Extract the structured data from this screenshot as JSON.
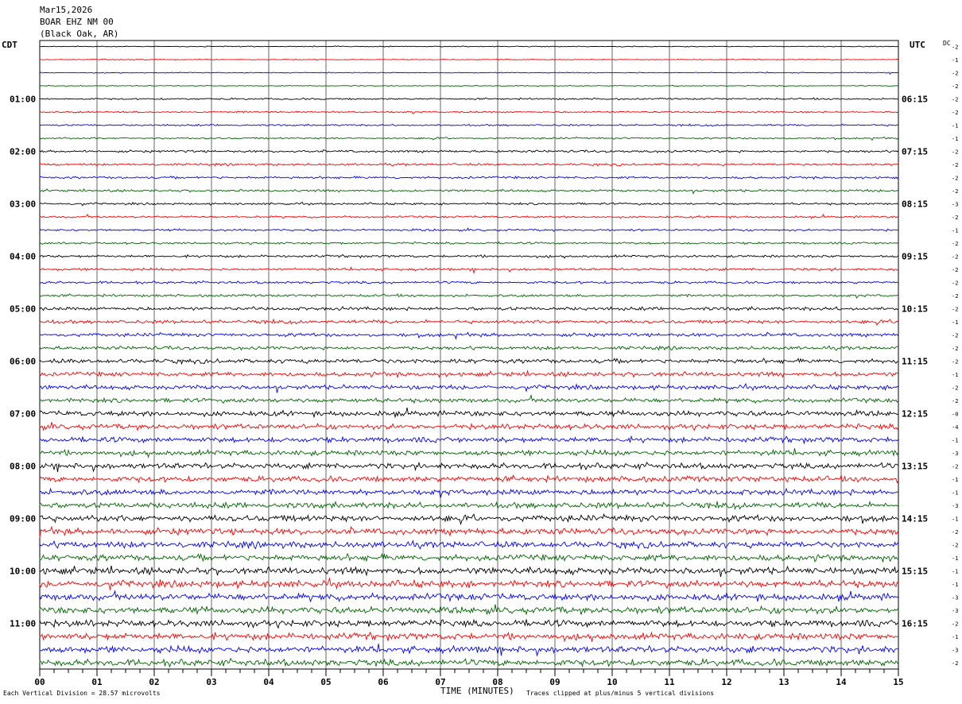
{
  "header": {
    "date": "Mar15,2026",
    "station": "BOAR EHZ NM 00",
    "location": "(Black Oak, AR)"
  },
  "left_axis_label": "CDT",
  "right_axis_label": "UTC",
  "dc_label": "DC",
  "footer": {
    "scale_note": "Each Vertical Division =   28.57 microvolts",
    "xlabel": "TIME (MINUTES)",
    "clip_note": "Traces clipped at plus/minus 5 vertical divisions"
  },
  "chart_data": {
    "type": "line",
    "title": "",
    "xlabel": "TIME (MINUTES)",
    "ylabel": "",
    "xlim": [
      0,
      15
    ],
    "x_ticks": [
      "00",
      "01",
      "02",
      "03",
      "04",
      "05",
      "06",
      "07",
      "08",
      "09",
      "10",
      "11",
      "12",
      "13",
      "14",
      "15"
    ],
    "trace_count": 48,
    "trace_colors": [
      "#000000",
      "#ff0000",
      "#0000ff",
      "#006400"
    ],
    "grid": true,
    "left_time_labels": [
      "01:00",
      "02:00",
      "03:00",
      "04:00",
      "05:00",
      "06:00",
      "07:00",
      "08:00",
      "09:00",
      "10:00",
      "11:00"
    ],
    "right_time_labels": [
      "06:15",
      "07:15",
      "08:15",
      "09:15",
      "10:15",
      "11:15",
      "12:15",
      "13:15",
      "14:15",
      "15:15",
      "16:15"
    ],
    "dc_offsets": [
      "-2",
      "-1",
      "-2",
      "-2",
      "-2",
      "-2",
      "-1",
      "-1",
      "-2",
      "-2",
      "-2",
      "-2",
      "-3",
      "-2",
      "-1",
      "-2",
      "-2",
      "-2",
      "-2",
      "-2",
      "-2",
      "-1",
      "-2",
      "-2",
      "-2",
      "-1",
      "-2",
      "-2",
      "-0",
      "-4",
      "-1",
      "-3",
      "-2",
      "-1",
      "-1",
      "-3",
      "-1",
      "-2",
      "-2",
      "-1",
      "-1",
      "-1",
      "-3",
      "-3",
      "-2",
      "-1",
      "-3",
      "-2"
    ],
    "amplitude_by_hour": [
      0.5,
      0.9,
      1.2,
      1.1,
      1.3,
      1.8,
      2.3,
      2.8,
      3.0,
      3.3,
      3.6,
      3.5
    ]
  }
}
